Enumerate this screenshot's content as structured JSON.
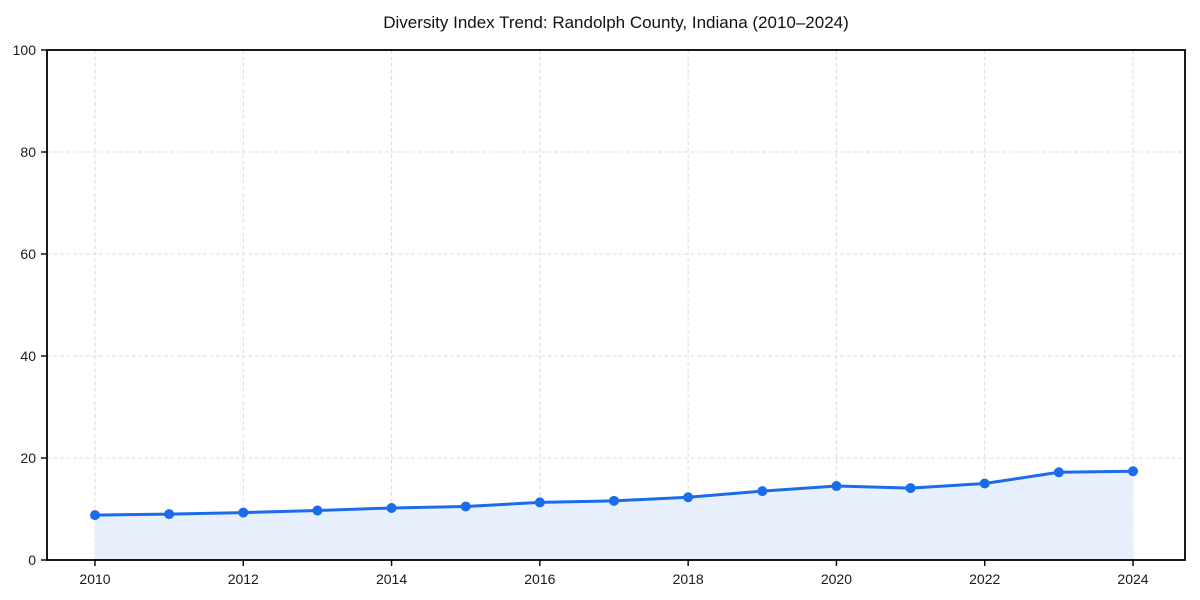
{
  "chart_data": {
    "type": "line",
    "title": "Diversity Index Trend: Randolph County, Indiana (2010–2024)",
    "series_name": "Diversity Index",
    "x": [
      2010,
      2011,
      2012,
      2013,
      2014,
      2015,
      2016,
      2017,
      2018,
      2019,
      2020,
      2021,
      2022,
      2023,
      2024
    ],
    "values": [
      8.8,
      9.0,
      9.3,
      9.7,
      10.2,
      10.5,
      11.3,
      11.6,
      12.3,
      13.5,
      14.5,
      14.1,
      15.0,
      17.2,
      17.4
    ],
    "xlabel": "",
    "ylabel": "",
    "xlim": [
      2010,
      2024
    ],
    "ylim": [
      0,
      100
    ],
    "xticks": [
      2010,
      2012,
      2014,
      2016,
      2018,
      2020,
      2022,
      2024
    ],
    "yticks": [
      0,
      20,
      40,
      60,
      80,
      100
    ],
    "grid": true,
    "grid_style": "dashed",
    "legend": false,
    "marker": "circle",
    "area_fill": true,
    "colors": {
      "line": "#1b6ceb",
      "marker": "#1b6ceb",
      "fill": "#e8f0fd",
      "grid": "#dcdcdc",
      "axis": "#000000",
      "tick_text": "#1a1a1a",
      "title_text": "#111111",
      "background": "#ffffff"
    }
  }
}
